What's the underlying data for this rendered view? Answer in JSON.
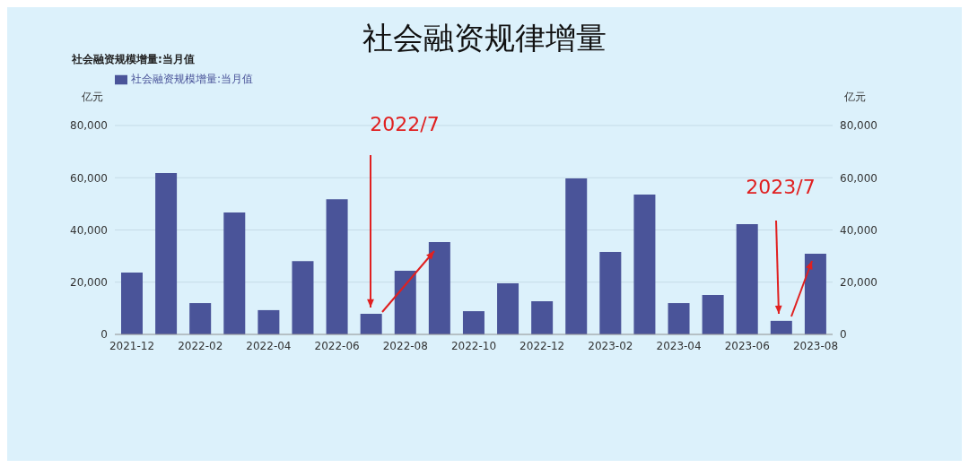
{
  "chart_data": {
    "type": "bar",
    "title": "社会融资规律增量",
    "subtitle": "社会融资规模增量:当月值",
    "ylabel": "亿元",
    "y2label": "亿元",
    "categories": [
      "2021-12",
      null,
      "2022-02",
      null,
      "2022-04",
      null,
      "2022-06",
      null,
      "2022-08",
      null,
      "2022-10",
      null,
      "2022-12",
      null,
      "2023-02",
      null,
      "2023-04",
      null,
      "2023-06",
      null,
      "2023-08"
    ],
    "series": [
      {
        "name": "社会融资规模增量:当月值",
        "color": "#4a5499",
        "values": [
          23700,
          61800,
          12000,
          46700,
          9300,
          28100,
          51800,
          7900,
          24400,
          35400,
          8900,
          19600,
          12700,
          59700,
          31600,
          53600,
          12000,
          15100,
          42200,
          5200,
          30900
        ]
      }
    ],
    "ylim": [
      0,
      80000
    ],
    "yticks": [
      0,
      {
        "value": 20000,
        "label": "20,000"
      },
      {
        "value": 40000,
        "label": "40,000"
      },
      {
        "value": 60000,
        "label": "60,000"
      },
      {
        "value": 80000,
        "label": "80,000"
      }
    ],
    "y2lim": [
      0,
      80000
    ],
    "y2ticks": [
      0,
      {
        "value": 20000,
        "label": "20,000"
      },
      {
        "value": 40000,
        "label": "40,000"
      },
      {
        "value": 60000,
        "label": "60,000"
      },
      {
        "value": 80000,
        "label": "80,000"
      }
    ],
    "grid": "y",
    "legend": "top left",
    "annotations": [
      "2022/7",
      "2023/7"
    ]
  }
}
